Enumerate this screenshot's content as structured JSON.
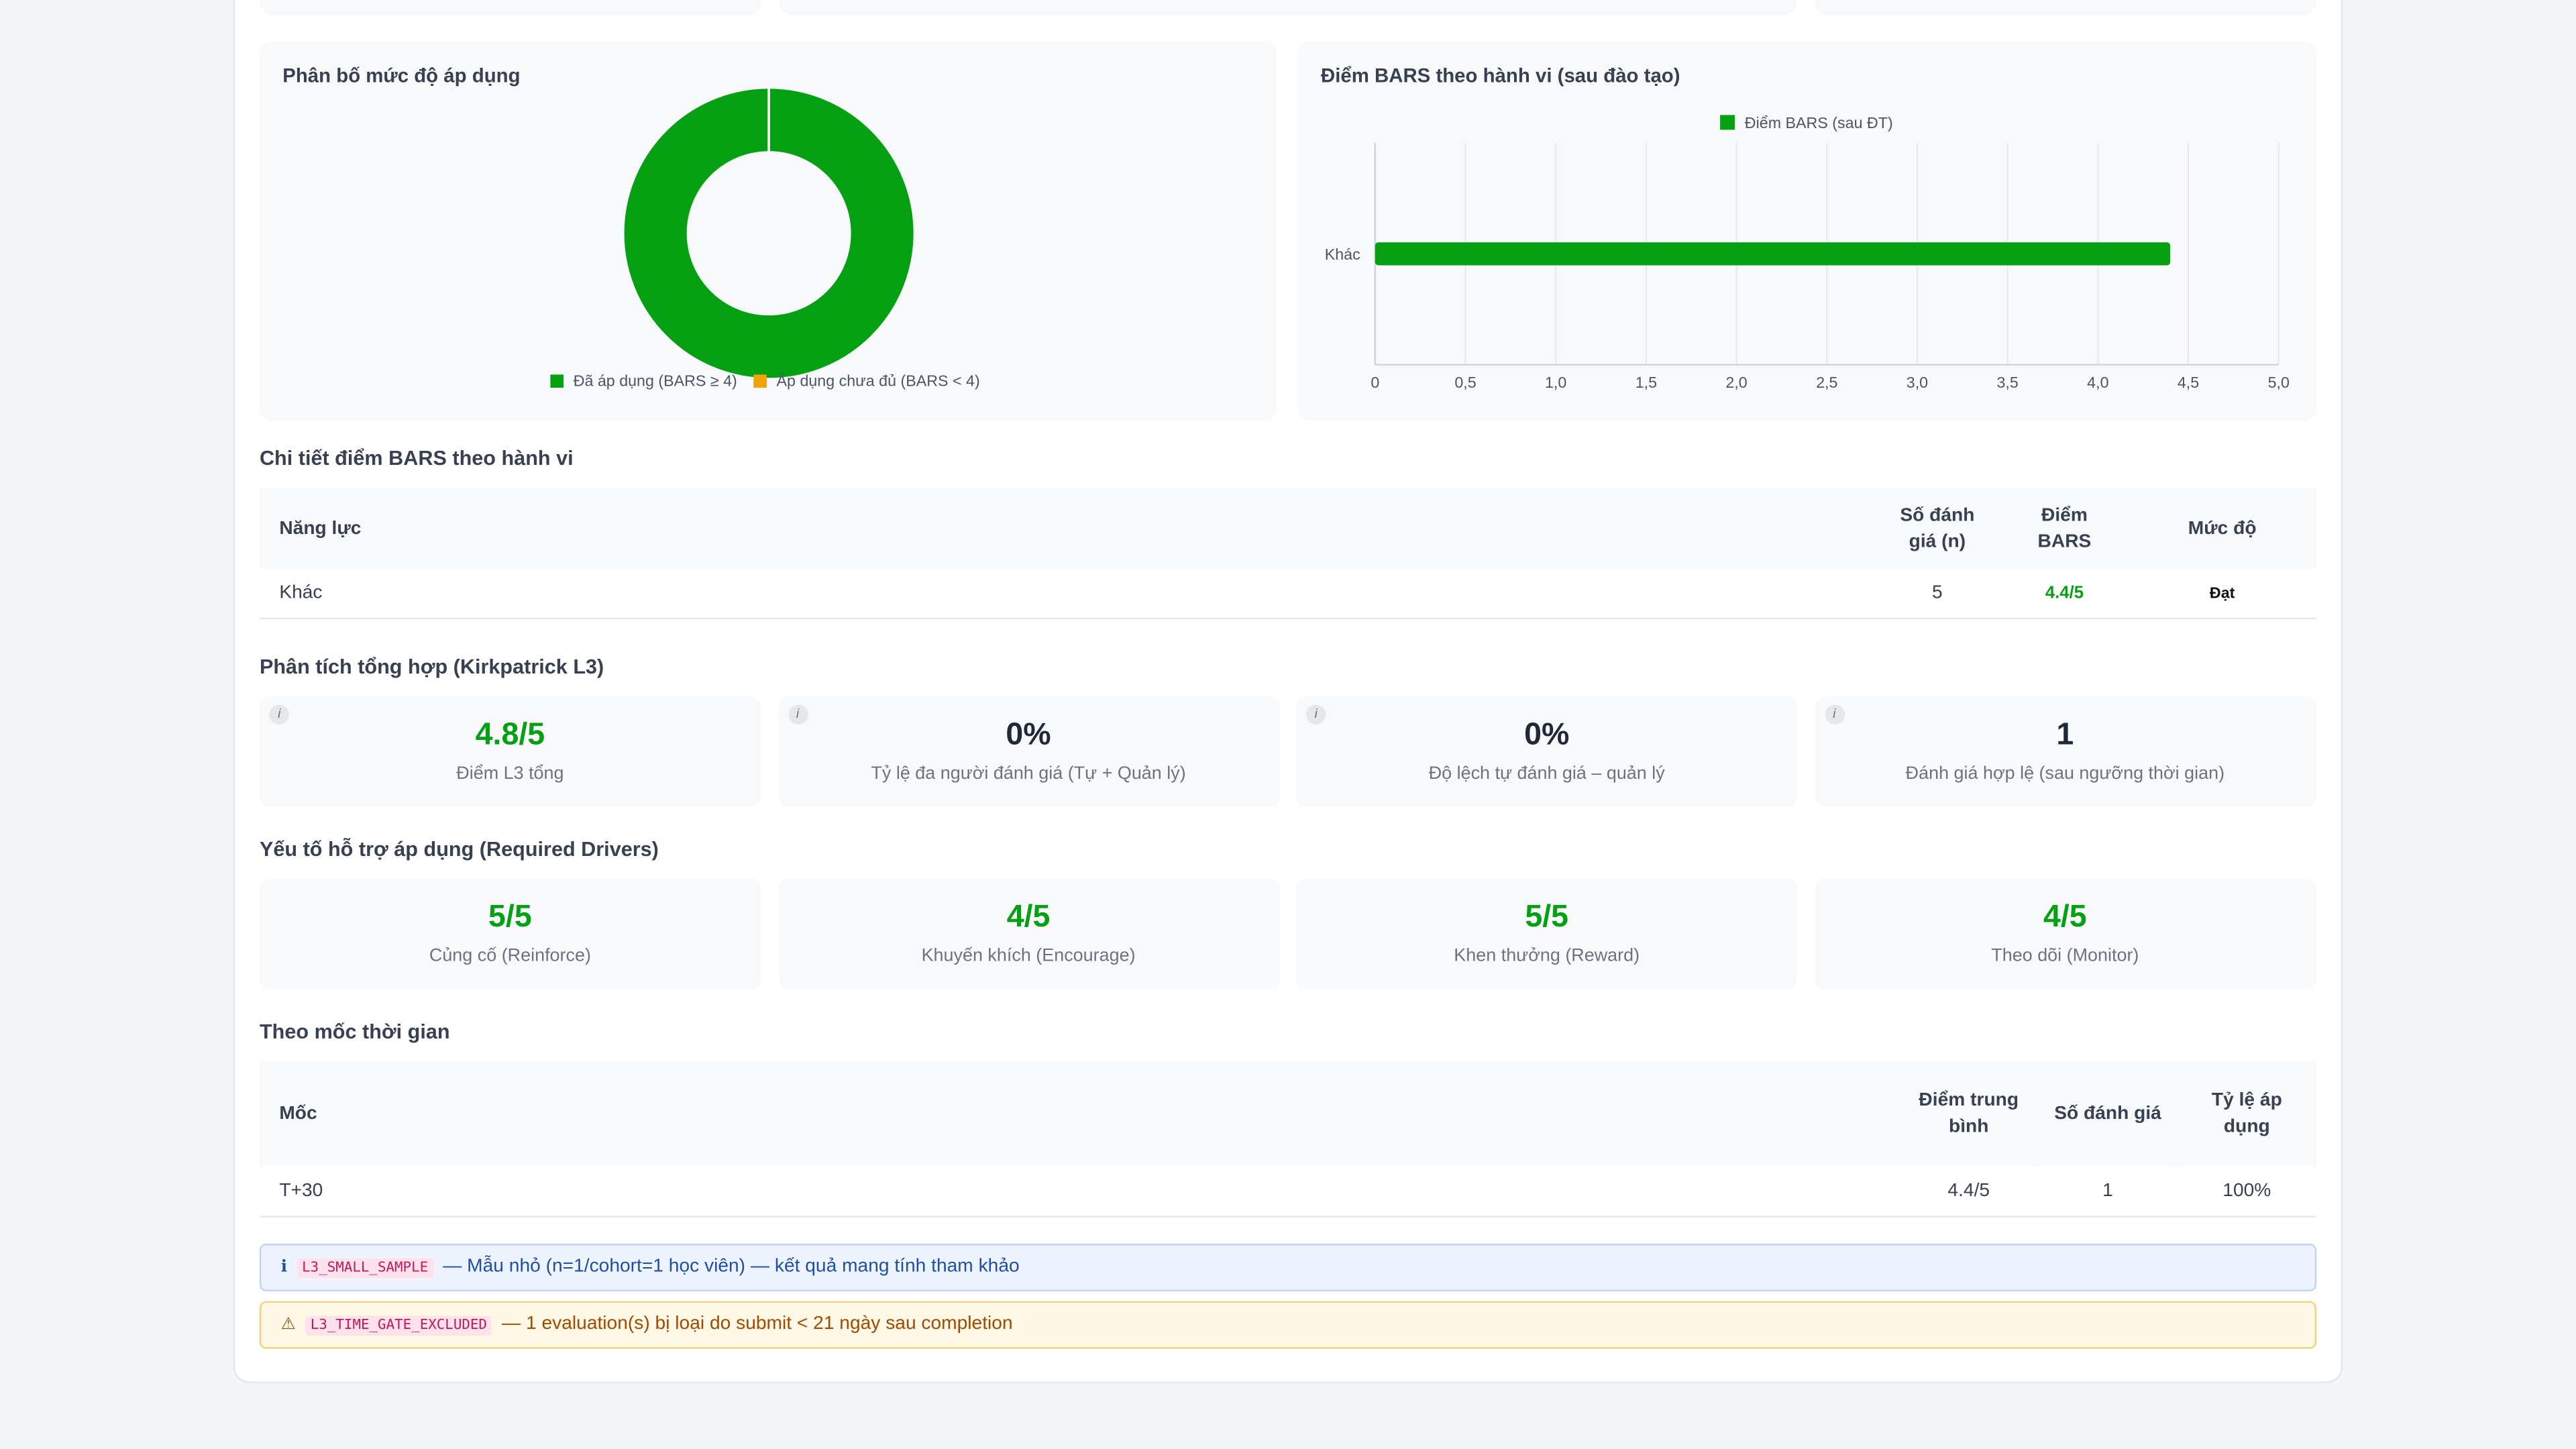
{
  "chart_data": [
    {
      "type": "donut",
      "title": "Phân bố mức độ áp dụng",
      "categories": [
        "Đã áp dụng (BARS ≥ 4)",
        "Áp dụng chưa đủ (BARS < 4)"
      ],
      "values": [
        1,
        0
      ],
      "colors": [
        "#06a013",
        "#f0a30a"
      ],
      "legend": "bottom"
    },
    {
      "type": "hbar",
      "title": "Điểm BARS theo hành vi (sau đào tạo)",
      "categories": [
        "Khác"
      ],
      "series": [
        {
          "name": "Điểm BARS (sau ĐT)",
          "color": "#06a013",
          "values": [
            4.4
          ]
        }
      ],
      "xlim": [
        0,
        5
      ],
      "xticks": [
        0,
        {
          "value": 0.5,
          "label": "0,5"
        },
        {
          "value": 1,
          "label": "1,0"
        },
        {
          "value": 1.5,
          "label": "1,5"
        },
        {
          "value": 2,
          "label": "2,0"
        },
        {
          "value": 2.5,
          "label": "2,5"
        },
        {
          "value": 3,
          "label": "3,0"
        },
        {
          "value": 3.5,
          "label": "3,5"
        },
        {
          "value": 4,
          "label": "4,0"
        },
        {
          "value": 4.5,
          "label": "4,5"
        },
        {
          "value": 5,
          "label": "5,0"
        }
      ],
      "grid": true,
      "legend": "top"
    }
  ],
  "detail": {
    "title": "Chi tiết điểm BARS theo hành vi",
    "headers": [
      "Năng lực",
      "Số đánh giá (n)",
      "Điểm BARS",
      "Mức độ"
    ],
    "rows": [
      [
        "Khác",
        "5",
        "4.4/5",
        "Đạt"
      ]
    ]
  },
  "summary": {
    "title": "Phân tích tổng hợp (Kirkpatrick L3)",
    "info_icon": "i",
    "cards": [
      {
        "value": "4.8/5",
        "label": "Điểm L3 tổng"
      },
      {
        "value": "0%",
        "label": "Tỷ lệ đa người đánh giá (Tự + Quản lý)"
      },
      {
        "value": "0%",
        "label": "Độ lệch tự đánh giá – quản lý"
      },
      {
        "value": "1",
        "label": "Đánh giá hợp lệ (sau ngưỡng thời gian)"
      }
    ]
  },
  "drivers": {
    "title": "Yếu tố hỗ trợ áp dụng (Required Drivers)",
    "cards": [
      {
        "value": "5/5",
        "label": "Củng cố (Reinforce)"
      },
      {
        "value": "4/5",
        "label": "Khuyến khích (Encourage)"
      },
      {
        "value": "5/5",
        "label": "Khen thưởng (Reward)"
      },
      {
        "value": "4/5",
        "label": "Theo dõi (Monitor)"
      }
    ]
  },
  "timeline": {
    "title": "Theo mốc thời gian",
    "headers": [
      "Mốc",
      "Điểm trung bình",
      "Số đánh giá",
      "Tỷ lệ áp dụng"
    ],
    "rows": [
      [
        "T+30",
        "4.4/5",
        "1",
        "100%"
      ]
    ]
  },
  "alerts": [
    {
      "icon": "ℹ",
      "code": "L3_SMALL_SAMPLE",
      "text": "— Mẫu nhỏ (n=1/cohort=1 học viên) — kết quả mang tính tham khảo"
    },
    {
      "icon": "⚠",
      "code": "L3_TIME_GATE_EXCLUDED",
      "text": "— 1 evaluation(s) bị loại do submit < 21 ngày sau completion"
    }
  ]
}
